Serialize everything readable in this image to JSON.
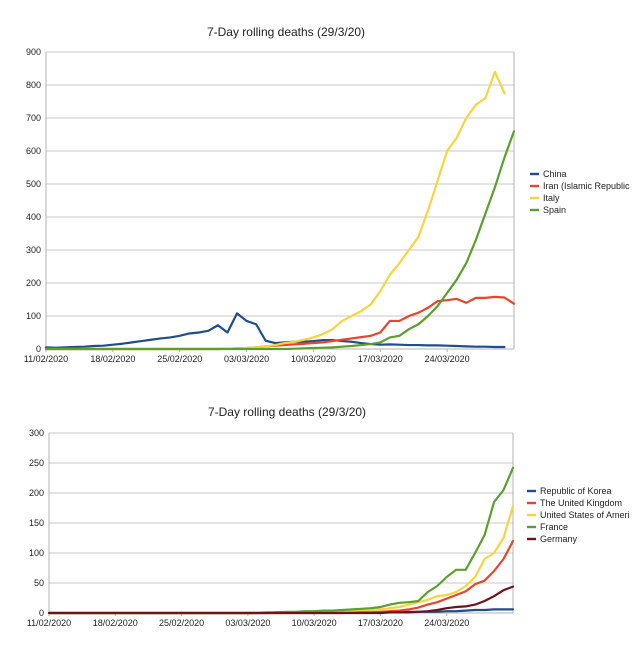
{
  "chart_data": [
    {
      "type": "line",
      "title": "7-Day rolling deaths (29/3/20)",
      "xlabel": "",
      "ylabel": "",
      "x_start": "11/02/2020",
      "x_tick_labels": [
        "11/02/2020",
        "18/02/2020",
        "25/02/2020",
        "03/03/2020",
        "10/03/2020",
        "17/03/2020",
        "24/03/2020"
      ],
      "ylim": [
        0,
        900
      ],
      "y_ticks": [
        0,
        100,
        200,
        300,
        400,
        500,
        600,
        700,
        800,
        900
      ],
      "grid": "horizontal",
      "legend": "right",
      "series": [
        {
          "name": "China",
          "color": "#1f4e8c",
          "values": [
            5,
            4,
            5,
            6,
            7,
            9,
            10,
            13,
            16,
            20,
            24,
            28,
            32,
            35,
            40,
            47,
            50,
            55,
            72,
            50,
            108,
            85,
            75,
            25,
            18,
            20,
            22,
            22,
            24,
            27,
            27,
            24,
            22,
            18,
            15,
            13,
            14,
            13,
            12,
            12,
            11,
            11,
            10,
            9,
            8,
            7,
            7,
            6,
            6
          ]
        },
        {
          "name": "Iran (Islamic Republic",
          "color": "#e8452c",
          "values": [
            0,
            0,
            0,
            0,
            0,
            0,
            0,
            0,
            0,
            0,
            0,
            0,
            0,
            0,
            0,
            0,
            0,
            0,
            0,
            1,
            2,
            3,
            5,
            8,
            10,
            12,
            14,
            16,
            18,
            20,
            24,
            28,
            32,
            36,
            40,
            50,
            85,
            85,
            100,
            110,
            125,
            145,
            148,
            152,
            140,
            155,
            155,
            158,
            156,
            137
          ]
        },
        {
          "name": "Italy",
          "color": "#f6d53e",
          "values": [
            0,
            0,
            0,
            0,
            0,
            0,
            0,
            0,
            0,
            0,
            0,
            0,
            0,
            0,
            0,
            0,
            0,
            0,
            0,
            1,
            2,
            3,
            5,
            8,
            12,
            18,
            22,
            28,
            35,
            45,
            60,
            85,
            100,
            115,
            135,
            175,
            225,
            260,
            300,
            340,
            420,
            510,
            600,
            640,
            700,
            740,
            760,
            840,
            775
          ]
        },
        {
          "name": "Spain",
          "color": "#5aa02c",
          "values": [
            0,
            0,
            0,
            0,
            0,
            0,
            0,
            0,
            0,
            0,
            0,
            0,
            0,
            0,
            0,
            0,
            0,
            0,
            0,
            0,
            0,
            0,
            0,
            0,
            0,
            0,
            1,
            2,
            3,
            4,
            5,
            7,
            9,
            12,
            15,
            20,
            35,
            40,
            60,
            75,
            100,
            130,
            170,
            210,
            260,
            330,
            410,
            490,
            580,
            660
          ]
        }
      ]
    },
    {
      "type": "line",
      "title": "7-Day rolling deaths (29/3/20)",
      "xlabel": "",
      "ylabel": "",
      "x_start": "11/02/2020",
      "x_tick_labels": [
        "11/02/2020",
        "18/02/2020",
        "25/02/2020",
        "03/03/2020",
        "10/03/2020",
        "17/03/2020",
        "24/03/2020"
      ],
      "ylim": [
        0,
        300
      ],
      "y_ticks": [
        0,
        50,
        100,
        150,
        200,
        250,
        300
      ],
      "grid": "horizontal",
      "legend": "right",
      "series": [
        {
          "name": "Republic of Korea",
          "color": "#1f4e8c",
          "values": [
            0,
            0,
            0,
            0,
            0,
            0,
            0,
            0,
            0,
            0,
            0,
            0,
            0,
            0,
            0,
            0,
            0,
            0,
            0,
            0,
            0,
            0,
            0,
            0,
            1,
            1,
            1,
            1,
            1,
            1,
            1,
            1,
            1,
            1,
            1,
            1,
            1,
            1,
            2,
            2,
            2,
            2,
            3,
            3,
            4,
            5,
            5,
            6,
            6,
            6
          ]
        },
        {
          "name": "The United Kingdom",
          "color": "#e8452c",
          "values": [
            0,
            0,
            0,
            0,
            0,
            0,
            0,
            0,
            0,
            0,
            0,
            0,
            0,
            0,
            0,
            0,
            0,
            0,
            0,
            0,
            0,
            0,
            0,
            0,
            0,
            0,
            0,
            0,
            0,
            0,
            0,
            0,
            1,
            1,
            1,
            2,
            3,
            4,
            6,
            9,
            14,
            18,
            24,
            30,
            36,
            48,
            54,
            70,
            90,
            120
          ]
        },
        {
          "name": "United States of Ameri",
          "color": "#f6d53e",
          "values": [
            0,
            0,
            0,
            0,
            0,
            0,
            0,
            0,
            0,
            0,
            0,
            0,
            0,
            0,
            0,
            0,
            0,
            0,
            0,
            0,
            0,
            0,
            0,
            0,
            0,
            1,
            1,
            2,
            2,
            3,
            3,
            4,
            4,
            5,
            5,
            6,
            8,
            10,
            14,
            18,
            22,
            28,
            30,
            35,
            45,
            60,
            90,
            100,
            125,
            178
          ]
        },
        {
          "name": "France",
          "color": "#5aa02c",
          "values": [
            0,
            0,
            0,
            0,
            0,
            0,
            0,
            0,
            0,
            0,
            0,
            0,
            0,
            0,
            0,
            0,
            0,
            0,
            0,
            0,
            0,
            0,
            0,
            1,
            1,
            2,
            2,
            3,
            3,
            4,
            4,
            5,
            6,
            7,
            8,
            10,
            14,
            17,
            18,
            20,
            35,
            45,
            60,
            72,
            72,
            100,
            130,
            185,
            205,
            242
          ]
        },
        {
          "name": "Germany",
          "color": "#6b1420",
          "values": [
            0,
            0,
            0,
            0,
            0,
            0,
            0,
            0,
            0,
            0,
            0,
            0,
            0,
            0,
            0,
            0,
            0,
            0,
            0,
            0,
            0,
            0,
            0,
            0,
            0,
            0,
            0,
            0,
            0,
            0,
            0,
            0,
            0,
            0,
            0,
            0,
            1,
            1,
            1,
            2,
            3,
            5,
            8,
            10,
            11,
            14,
            20,
            28,
            38,
            44
          ]
        }
      ]
    }
  ]
}
